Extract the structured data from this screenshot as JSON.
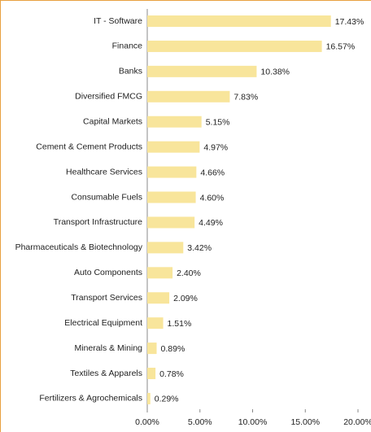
{
  "chart_data": {
    "type": "bar",
    "orientation": "horizontal",
    "categories": [
      "IT - Software",
      "Finance",
      "Banks",
      "Diversified FMCG",
      "Capital Markets",
      "Cement & Cement Products",
      "Healthcare Services",
      "Consumable Fuels",
      "Transport Infrastructure",
      "Pharmaceuticals & Biotechnology",
      "Auto Components",
      "Transport Services",
      "Electrical Equipment",
      "Minerals & Mining",
      "Textiles & Apparels",
      "Fertilizers & Agrochemicals"
    ],
    "values": [
      17.43,
      16.57,
      10.38,
      7.83,
      5.15,
      4.97,
      4.66,
      4.6,
      4.49,
      3.42,
      2.4,
      2.09,
      1.51,
      0.89,
      0.78,
      0.29
    ],
    "value_labels": [
      "17.43%",
      "16.57%",
      "10.38%",
      "7.83%",
      "5.15%",
      "4.97%",
      "4.66%",
      "4.60%",
      "4.49%",
      "3.42%",
      "2.40%",
      "2.09%",
      "1.51%",
      "0.89%",
      "0.78%",
      "0.29%"
    ],
    "color": "#f8e59b",
    "xlim": [
      0,
      20
    ],
    "xticks": [
      {
        "value": 0,
        "label": "0.00%"
      },
      {
        "value": 5,
        "label": "5.00%"
      },
      {
        "value": 10,
        "label": "10.00%"
      },
      {
        "value": 15,
        "label": "15.00%"
      },
      {
        "value": 20,
        "label": "20.00%"
      }
    ]
  }
}
